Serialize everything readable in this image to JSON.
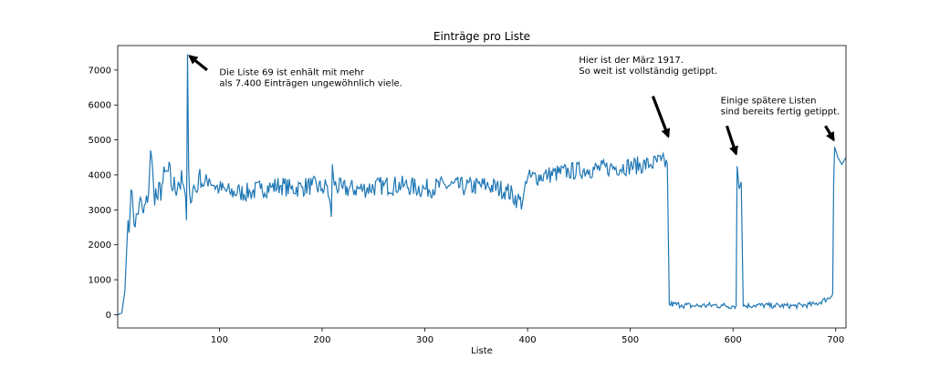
{
  "chart_data": {
    "type": "line",
    "title": "Einträge pro Liste",
    "xlabel": "Liste",
    "ylabel": "",
    "xlim": [
      1,
      710
    ],
    "ylim": [
      -380,
      7700
    ],
    "xticks": [
      100,
      200,
      300,
      400,
      500,
      600,
      700
    ],
    "yticks": [
      0,
      1000,
      2000,
      3000,
      4000,
      5000,
      6000,
      7000
    ],
    "grid": false,
    "line_color": "#1f77b4",
    "series": [
      {
        "keypoints": [
          [
            1,
            0
          ],
          [
            5,
            50
          ],
          [
            8,
            700
          ],
          [
            11,
            2700
          ],
          [
            13,
            2900
          ],
          [
            15,
            3500
          ],
          [
            18,
            2500
          ],
          [
            22,
            3200
          ],
          [
            26,
            2900
          ],
          [
            30,
            3200
          ],
          [
            33,
            4700
          ],
          [
            36,
            3600
          ],
          [
            40,
            3300
          ],
          [
            45,
            3800
          ],
          [
            50,
            4100
          ],
          [
            55,
            3600
          ],
          [
            60,
            3800
          ],
          [
            65,
            3700
          ],
          [
            68,
            2700
          ],
          [
            69,
            7450
          ],
          [
            70,
            4200
          ],
          [
            72,
            3200
          ],
          [
            75,
            3700
          ],
          [
            78,
            3500
          ],
          [
            80,
            4000
          ],
          [
            85,
            3700
          ],
          [
            90,
            3900
          ],
          [
            95,
            3700
          ],
          [
            100,
            3600
          ],
          [
            110,
            3500
          ],
          [
            120,
            3500
          ],
          [
            130,
            3500
          ],
          [
            140,
            3600
          ],
          [
            150,
            3650
          ],
          [
            160,
            3700
          ],
          [
            170,
            3600
          ],
          [
            180,
            3650
          ],
          [
            190,
            3700
          ],
          [
            200,
            3600
          ],
          [
            205,
            3700
          ],
          [
            209,
            2800
          ],
          [
            210,
            4300
          ],
          [
            212,
            3700
          ],
          [
            220,
            3600
          ],
          [
            240,
            3600
          ],
          [
            260,
            3700
          ],
          [
            280,
            3700
          ],
          [
            300,
            3600
          ],
          [
            320,
            3700
          ],
          [
            340,
            3650
          ],
          [
            360,
            3700
          ],
          [
            380,
            3550
          ],
          [
            390,
            3300
          ],
          [
            395,
            3200
          ],
          [
            398,
            3800
          ],
          [
            400,
            3900
          ],
          [
            420,
            4000
          ],
          [
            440,
            4100
          ],
          [
            460,
            4150
          ],
          [
            480,
            4200
          ],
          [
            500,
            4250
          ],
          [
            520,
            4300
          ],
          [
            530,
            4400
          ],
          [
            536,
            4300
          ],
          [
            538,
            300
          ],
          [
            550,
            280
          ],
          [
            560,
            250
          ],
          [
            570,
            260
          ],
          [
            580,
            270
          ],
          [
            590,
            260
          ],
          [
            600,
            250
          ],
          [
            603,
            260
          ],
          [
            604,
            4250
          ],
          [
            606,
            3600
          ],
          [
            608,
            3800
          ],
          [
            610,
            250
          ],
          [
            620,
            270
          ],
          [
            640,
            260
          ],
          [
            660,
            250
          ],
          [
            680,
            300
          ],
          [
            695,
            500
          ],
          [
            697,
            600
          ],
          [
            698,
            3800
          ],
          [
            699,
            4800
          ],
          [
            702,
            4500
          ],
          [
            706,
            4300
          ],
          [
            710,
            4500
          ]
        ],
        "noise_ranges": [
          {
            "from": 12,
            "to": 68,
            "amplitude": 450
          },
          {
            "from": 71,
            "to": 208,
            "amplitude": 280
          },
          {
            "from": 211,
            "to": 395,
            "amplitude": 280
          },
          {
            "from": 399,
            "to": 536,
            "amplitude": 260
          },
          {
            "from": 539,
            "to": 602,
            "amplitude": 90
          },
          {
            "from": 611,
            "to": 696,
            "amplitude": 80
          }
        ]
      }
    ],
    "annotations": [
      {
        "lines": [
          "Die Liste 69 ist enhält mit mehr",
          "als 7.400 Einträgen ungewöhnlich viele."
        ],
        "text_x": 100,
        "text_y": 6850,
        "arrow_from_x": 88,
        "arrow_from_y": 7000,
        "arrow_to_x": 71,
        "arrow_to_y": 7400
      },
      {
        "lines": [
          "Hier ist der März 1917.",
          "So weit ist vollständig getippt."
        ],
        "text_x": 450,
        "text_y": 7200,
        "arrow_from_x": 522,
        "arrow_from_y": 6250,
        "arrow_to_x": 537,
        "arrow_to_y": 5100
      },
      {
        "lines": [
          "Einige spätere Listen",
          "sind bereits fertig getippt."
        ],
        "text_x": 588,
        "text_y": 6050,
        "arrow_from_x": 594,
        "arrow_from_y": 5400,
        "arrow_to_x": 603,
        "arrow_to_y": 4600
      },
      {
        "lines": [],
        "arrow_from_x": 690,
        "arrow_from_y": 5400,
        "arrow_to_x": 698,
        "arrow_to_y": 5000
      }
    ]
  }
}
